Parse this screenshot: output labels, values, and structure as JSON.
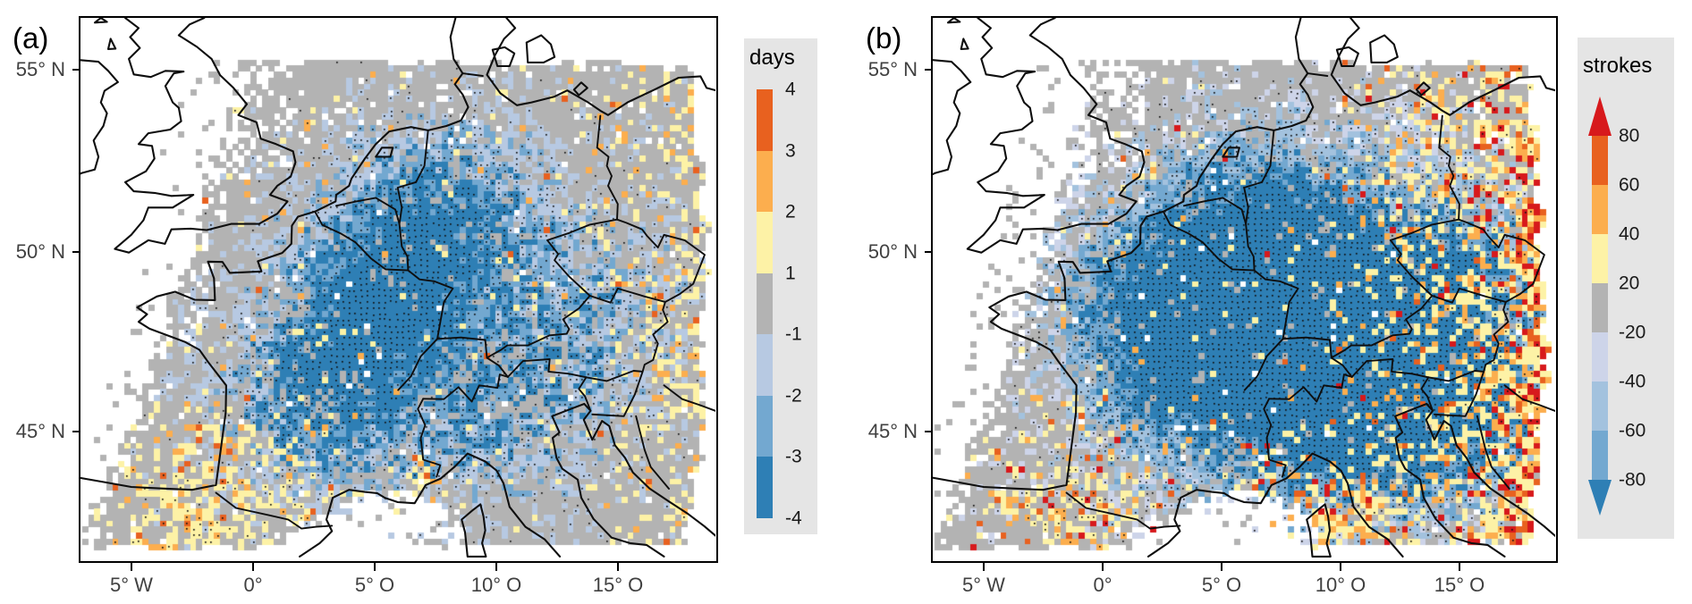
{
  "figure": {
    "panel_a": {
      "label": "(a)",
      "x_tick_labels": [
        "5° W",
        "0°",
        "5° O",
        "10° O",
        "15° O"
      ],
      "y_tick_labels": [
        "55° N",
        "50° N",
        "45° N"
      ],
      "legend": {
        "title": "days",
        "tick_labels": [
          "4",
          "3",
          "2",
          "1",
          "-1",
          "-2",
          "-3",
          "-4"
        ],
        "segment_colors_top_to_bottom": [
          "#e8611f",
          "#fcae4e",
          "#fdf2a6",
          "#b3b3b3",
          "#b7c9e2",
          "#73a8d0",
          "#2e7fb5"
        ]
      }
    },
    "panel_b": {
      "label": "(b)",
      "x_tick_labels": [
        "5° W",
        "0°",
        "5° O",
        "10° O",
        "15° O"
      ],
      "y_tick_labels": [
        "55° N",
        "50° N",
        "45° N"
      ],
      "legend": {
        "title": "strokes",
        "tick_labels": [
          "80",
          "60",
          "40",
          "20",
          "-20",
          "-40",
          "-60",
          "-80"
        ],
        "segment_colors_top_to_bottom": [
          "#e8611f",
          "#fcae4e",
          "#fdf2a6",
          "#b3b3b3",
          "#cdd4e9",
          "#a3c2de",
          "#73a8d0"
        ],
        "arrow_top_color": "#d7191c",
        "arrow_bottom_color": "#2e7fb5"
      }
    },
    "colors": {
      "grid_gray": "#b3b3b3",
      "cool_a": [
        "#b7c9e2",
        "#73a8d0",
        "#2e7fb5"
      ],
      "cool_b": [
        "#cdd4e9",
        "#a3c2de",
        "#73a8d0",
        "#2e7fb5"
      ],
      "warm": [
        "#fdf2a6",
        "#fcae4e",
        "#e8611f",
        "#d7191c"
      ],
      "stipple": "#111111",
      "outline": "#0e0e0e",
      "legend_bg": "#e5e5e5",
      "axis_text": "#404040",
      "no_data": "#ffffff"
    }
  },
  "chart_data": {
    "type": "heatmap",
    "subtype": "two-panel gridded difference map over Europe, discrete diverging color scale, country outlines overlaid",
    "region": "Western/Central Europe, approx 7° W to 19° E and 41.5° N to 56.4° N",
    "x_axis": {
      "tick_labels": [
        "5° W",
        "0°",
        "5° O",
        "10° O",
        "15° O"
      ],
      "tick_values_deg_lon": [
        -5,
        0,
        5,
        10,
        15
      ]
    },
    "y_axis": {
      "tick_labels": [
        "55° N",
        "50° N",
        "45° N"
      ],
      "tick_values_deg_lat": [
        55,
        50,
        45
      ]
    },
    "panels": [
      {
        "panel": "(a)",
        "legend_title": "days",
        "scale_breaks": [
          -4,
          -3,
          -2,
          -1,
          1,
          2,
          3,
          4
        ],
        "palette_low_to_high": [
          "#2e7fb5",
          "#73a8d0",
          "#b7c9e2",
          "#b3b3b3",
          "#fdf2a6",
          "#fcae4e",
          "#e8611f"
        ],
        "open_ended": false,
        "pattern_summary": "Mostly grey cells (-1 to 1 days). Blue cells (decreases to -4 days, many stippled with black dots) form a diagonal band over central and NE France, Benelux, central Germany and the Alps. Yellow and orange cells (increases) are scattered along the eastern margin of the data domain and over northern Spain; a few orange-red cells near the Ligurian coast."
      },
      {
        "panel": "(b)",
        "legend_title": "strokes",
        "scale_breaks": [
          -80,
          -60,
          -40,
          -20,
          20,
          40,
          60,
          80
        ],
        "palette_low_to_high": [
          "#2e7fb5",
          "#73a8d0",
          "#a3c2de",
          "#cdd4e9",
          "#b3b3b3",
          "#fdf2a6",
          "#fcae4e",
          "#e8611f",
          "#d7191c"
        ],
        "open_ended": true,
        "pattern_summary": "Widespread pale to dark blue cells (stroke decreases, heavily stippled) over France, Benelux, Germany, the Alps, Po valley and NW Balkans. Dense yellow/orange/red cells (increases beyond +80 strokes) along the eastern edge (Poland, Czech/Austrian border region, Croatia/Bosnia), scattered along the Mediterranean coast and Corsica; yellow cells over northern Spain."
      }
    ],
    "no_data_color": "#ffffff",
    "stippling": "small black dots overlaid on many coloured grid cells",
    "grid_cell_size_px": 7
  }
}
